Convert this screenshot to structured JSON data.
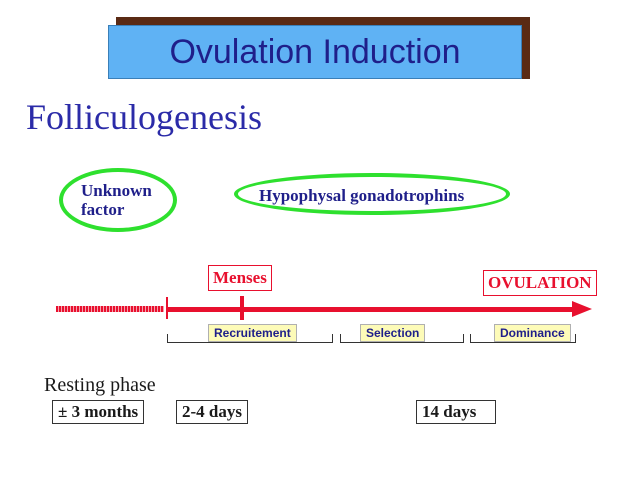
{
  "title": "Ovulation Induction",
  "subtitle": "Folliculogenesis",
  "ovals": {
    "unknown_factor": "Unknown factor",
    "hypophysal": "Hypophysal gonadotrophins"
  },
  "timeline": {
    "menses": "Menses",
    "ovulation": "OVULATION",
    "phases": {
      "recruitement": "Recruitement",
      "selection": "Selection",
      "dominance": "Dominance"
    }
  },
  "resting_phase": "Resting phase",
  "durations": {
    "resting": "± 3 months",
    "recruitement": "2-4 days",
    "total": "14 days"
  },
  "colors": {
    "banner": "#5fb2f4",
    "banner_shadow": "#5a2a14",
    "oval": "#2ee02e",
    "timeline": "#e8102e",
    "text_blue": "#1f1f8a",
    "phase_fill": "#fdfbb8"
  }
}
